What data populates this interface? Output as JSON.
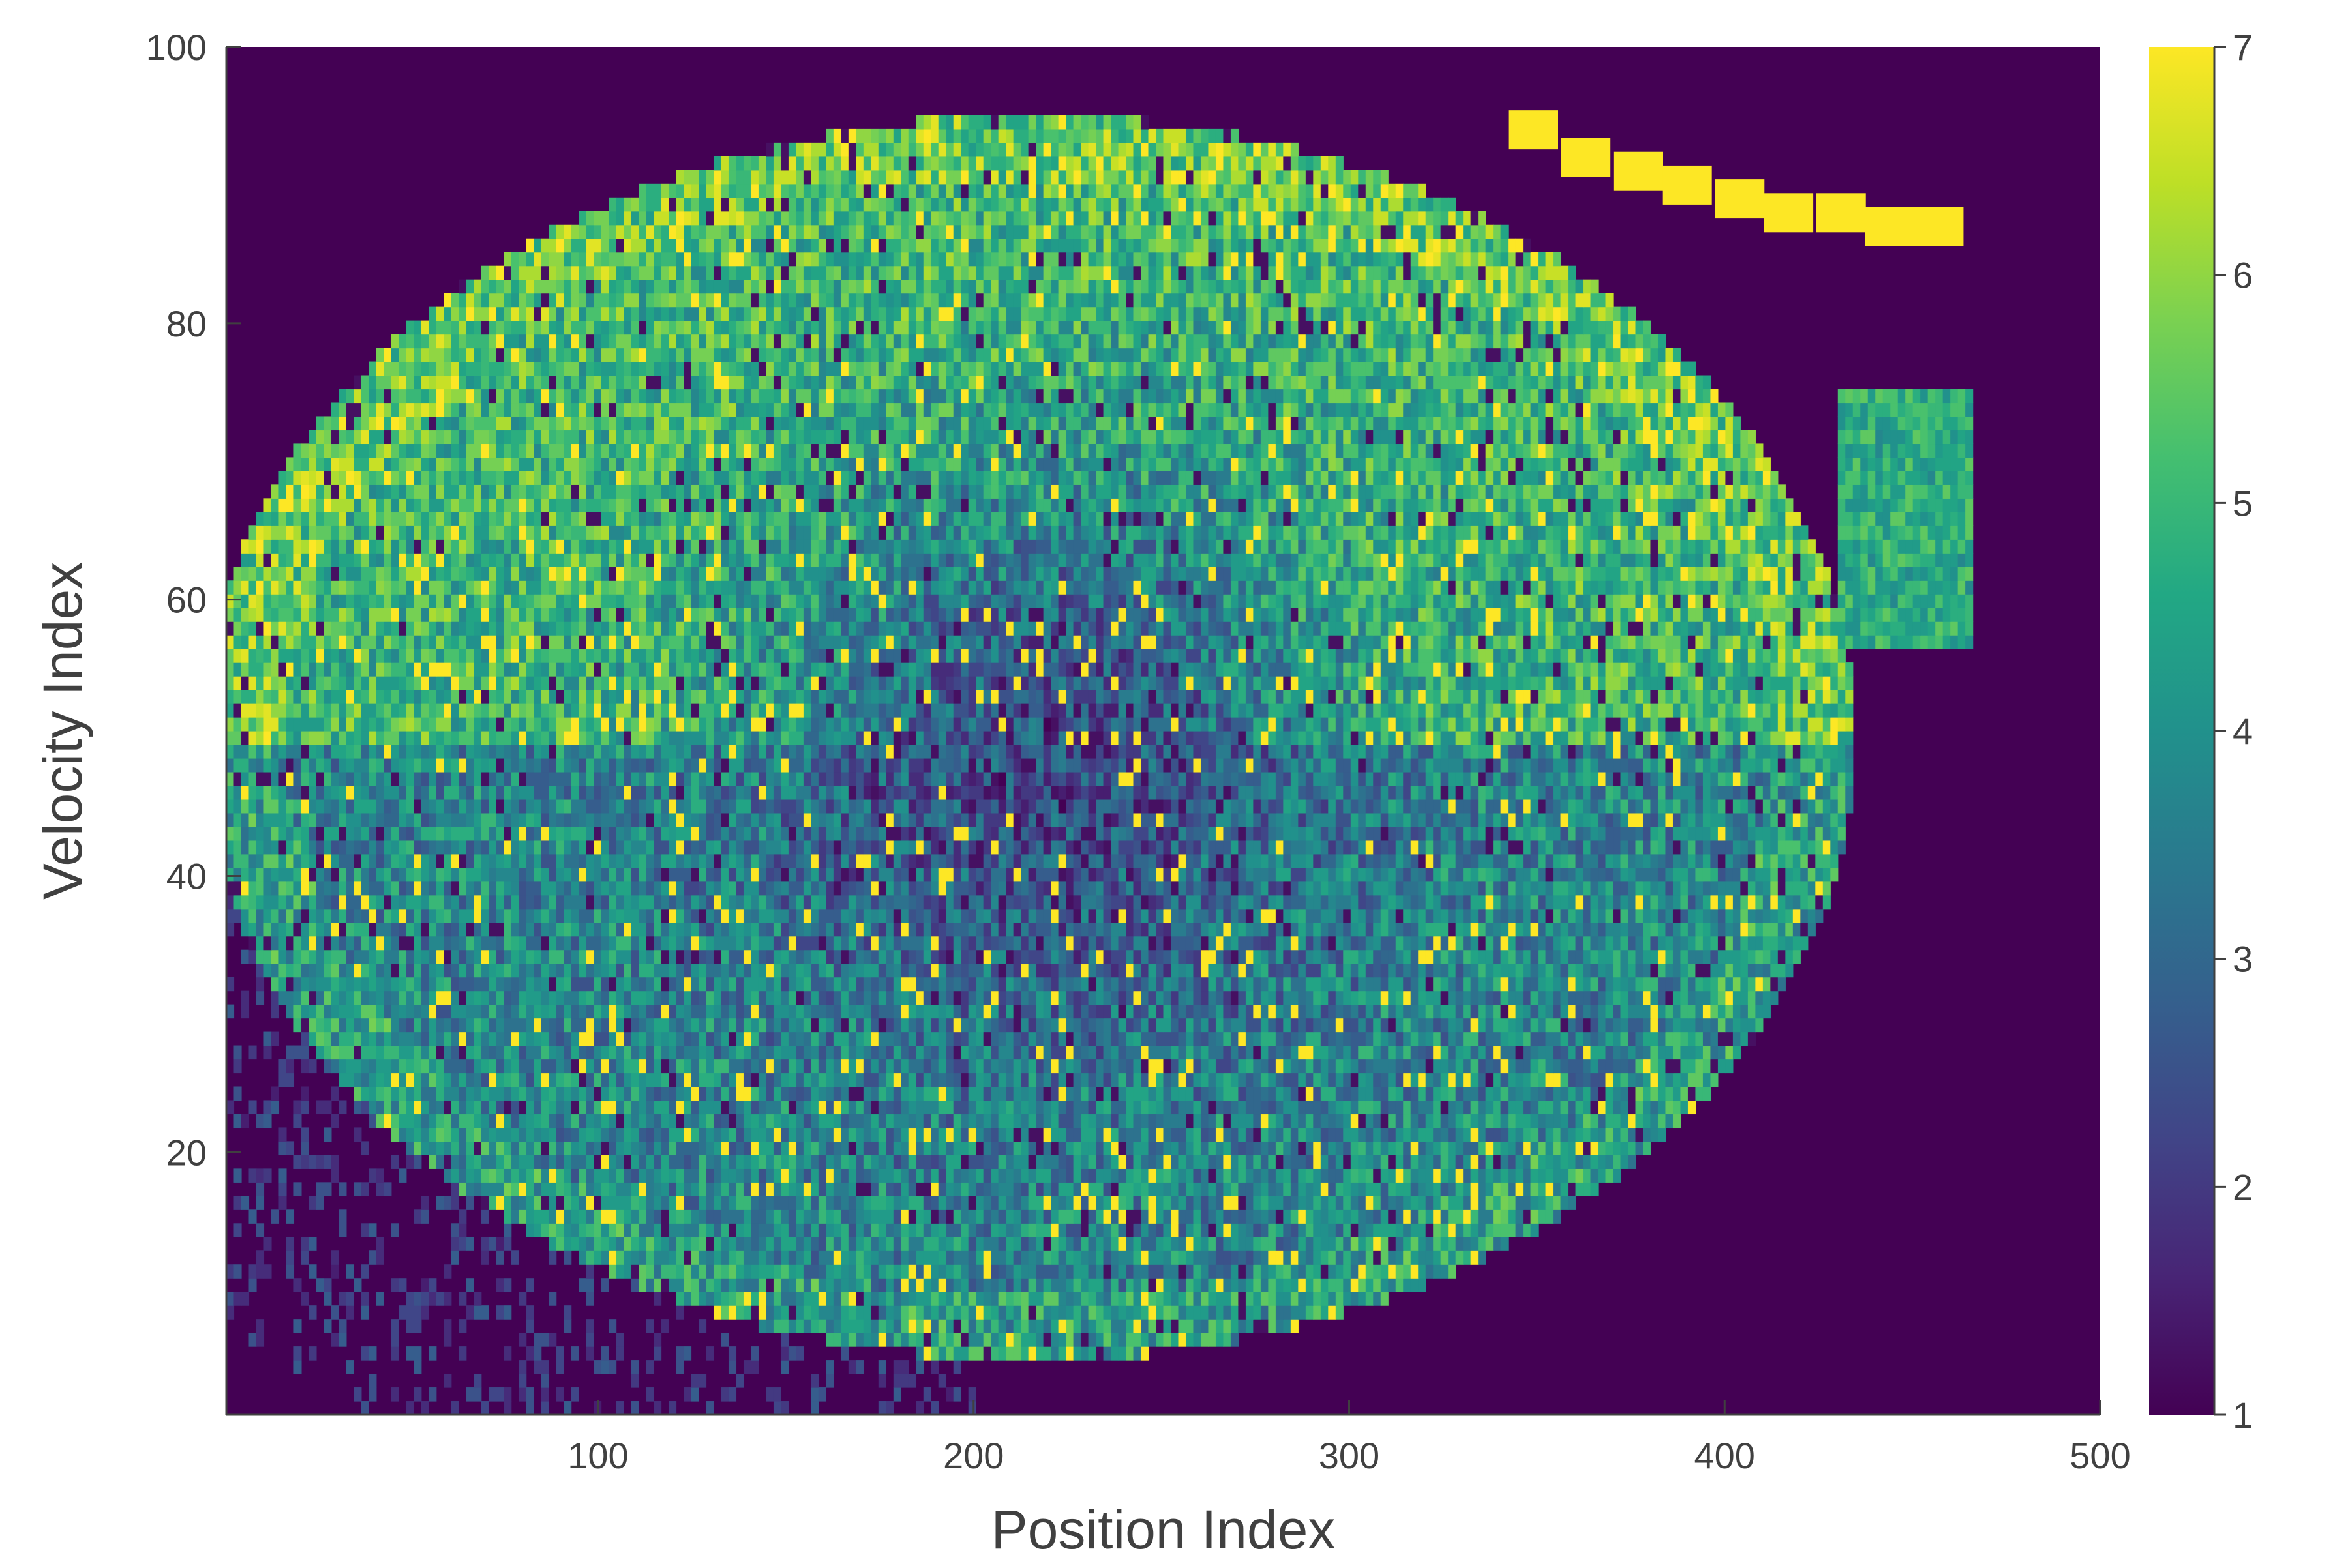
{
  "chart_data": {
    "type": "heatmap",
    "title": "",
    "xlabel": "Position Index",
    "ylabel": "Velocity Index",
    "xlim": [
      1,
      500
    ],
    "ylim": [
      1,
      100
    ],
    "x_ticks": [
      100,
      200,
      300,
      400,
      500
    ],
    "y_ticks": [
      20,
      40,
      60,
      80,
      100
    ],
    "colorbar": {
      "colormap": "viridis",
      "range": [
        1,
        7
      ],
      "ticks": [
        1,
        2,
        3,
        4,
        5,
        6,
        7
      ]
    },
    "background_value": 1,
    "colors": {
      "viridis_low": "#440154",
      "viridis_mid": "#21918c",
      "viridis_high": "#fde725"
    },
    "features": {
      "main_region": {
        "description_values": "ellipse of mixed values 2-7",
        "center": [
          215,
          50
        ],
        "radius_x": 220,
        "radius_y": 45,
        "upper_half_mean": 5.0,
        "lower_half_mean": 3.8,
        "core_low_center": [
          220,
          48
        ],
        "core_low_mean": 2.3
      },
      "yellow_trail": {
        "value": 7,
        "points": [
          [
            349,
            94
          ],
          [
            363,
            92
          ],
          [
            377,
            91
          ],
          [
            390,
            90
          ],
          [
            404,
            89
          ],
          [
            417,
            88
          ],
          [
            431,
            88
          ],
          [
            444,
            87
          ],
          [
            457,
            87
          ]
        ]
      },
      "right_lobe": {
        "x_range": [
          430,
          467
        ],
        "y_range": [
          56,
          75
        ],
        "mean": 4.7
      }
    }
  }
}
